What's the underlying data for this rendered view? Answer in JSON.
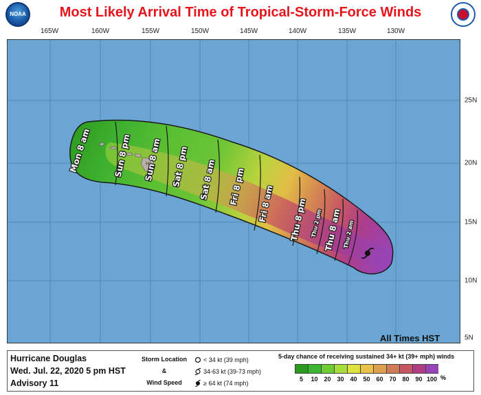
{
  "title": "Most Likely Arrival Time of Tropical-Storm-Force Winds",
  "map": {
    "longitude_labels": [
      "165W",
      "160W",
      "155W",
      "150W",
      "145W",
      "140W",
      "135W",
      "130W"
    ],
    "latitude_labels": [
      "25N",
      "20N",
      "15N",
      "10N",
      "5N"
    ],
    "island_label": "HI",
    "time_labels": [
      "Mon 8 am",
      "Sun 8 pm",
      "Sun 8 am",
      "Sat 8 pm",
      "Sat 8 am",
      "Fri 8 pm",
      "Fri 8 am",
      "Thu 8 pm",
      "Thu 2 pm",
      "Thu 8 am",
      "Thu 2 am"
    ],
    "timezone_note": "All Times HST",
    "ocean_color": "#6aa5d3",
    "land_color": "#b8b0a6"
  },
  "storm": {
    "name": "Hurricane Douglas",
    "issued": "Wed. Jul. 22, 2020  5 pm HST",
    "advisory": "Advisory 11"
  },
  "legend": {
    "storm_location_label": "Storm Location",
    "ampersand": "&",
    "wind_speed_label": "Wind Speed",
    "speed_lt34": "< 34 kt (39 mph)",
    "speed_34_63": "34-63 kt (39-73 mph)",
    "speed_ge64": "≥ 64 kt (74 mph)",
    "probability_title": "5-day chance of receiving sustained 34+ kt (39+ mph) winds",
    "probability_levels": [
      "5",
      "10",
      "20",
      "30",
      "40",
      "50",
      "60",
      "70",
      "80",
      "90",
      "100"
    ],
    "probability_colors": [
      "#2b9a1c",
      "#3cb731",
      "#6fcd33",
      "#a6dc3b",
      "#dde23d",
      "#e9c24a",
      "#dca14e",
      "#cf7b56",
      "#c65564",
      "#b13d84",
      "#9744b8"
    ],
    "probability_unit": "%"
  }
}
